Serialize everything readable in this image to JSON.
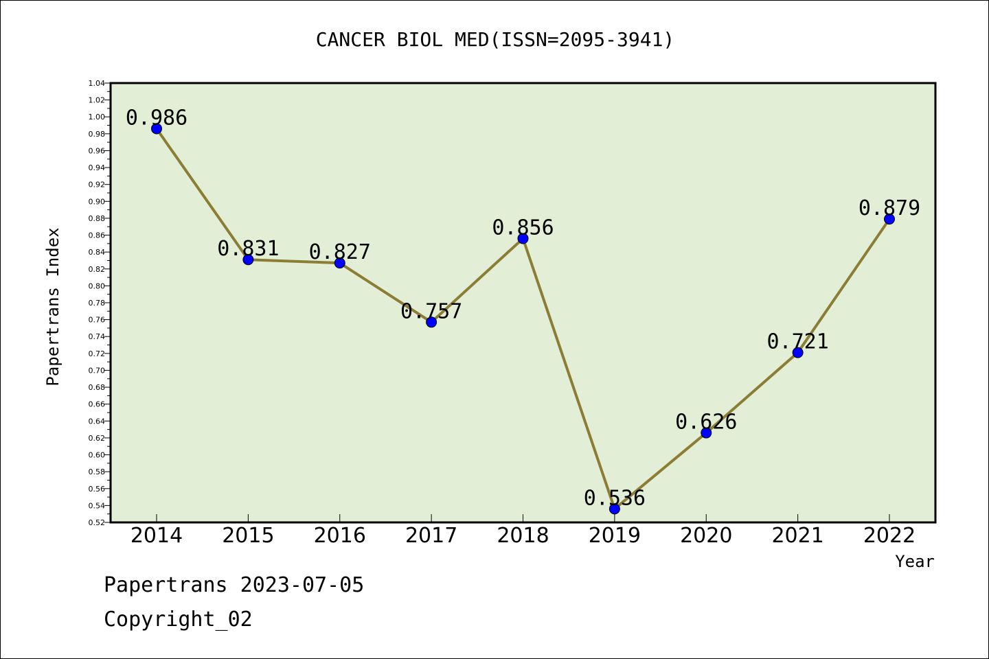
{
  "chart_data": {
    "type": "line",
    "title": "CANCER BIOL MED(ISSN=2095-3941)",
    "xlabel": "Year",
    "ylabel": "Papertrans Index",
    "categories": [
      "2014",
      "2015",
      "2016",
      "2017",
      "2018",
      "2019",
      "2020",
      "2021",
      "2022"
    ],
    "series": [
      {
        "values": [
          0.986,
          0.831,
          0.827,
          0.757,
          0.856,
          0.536,
          0.626,
          0.721,
          0.879
        ]
      }
    ],
    "data_labels": [
      "0.986",
      "0.831",
      "0.827",
      "0.757",
      "0.856",
      "0.536",
      "0.626",
      "0.721",
      "0.879"
    ],
    "ylim": [
      0.52,
      1.04
    ],
    "yticks": [
      "0.52",
      "0.54",
      "0.56",
      "0.58",
      "0.60",
      "0.62",
      "0.64",
      "0.66",
      "0.68",
      "0.70",
      "0.72",
      "0.74",
      "0.76",
      "0.78",
      "0.80",
      "0.82",
      "0.84",
      "0.86",
      "0.88",
      "0.90",
      "0.92",
      "0.94",
      "0.96",
      "0.98",
      "1.00",
      "1.02",
      "1.04"
    ],
    "grid": false,
    "colors": {
      "plot_background": "#e2efd6",
      "line": "#8c7d35",
      "marker": "#0000ff"
    }
  },
  "footer": {
    "date_line": "Papertrans 2023-07-05",
    "copyright": "Copyright_02"
  }
}
